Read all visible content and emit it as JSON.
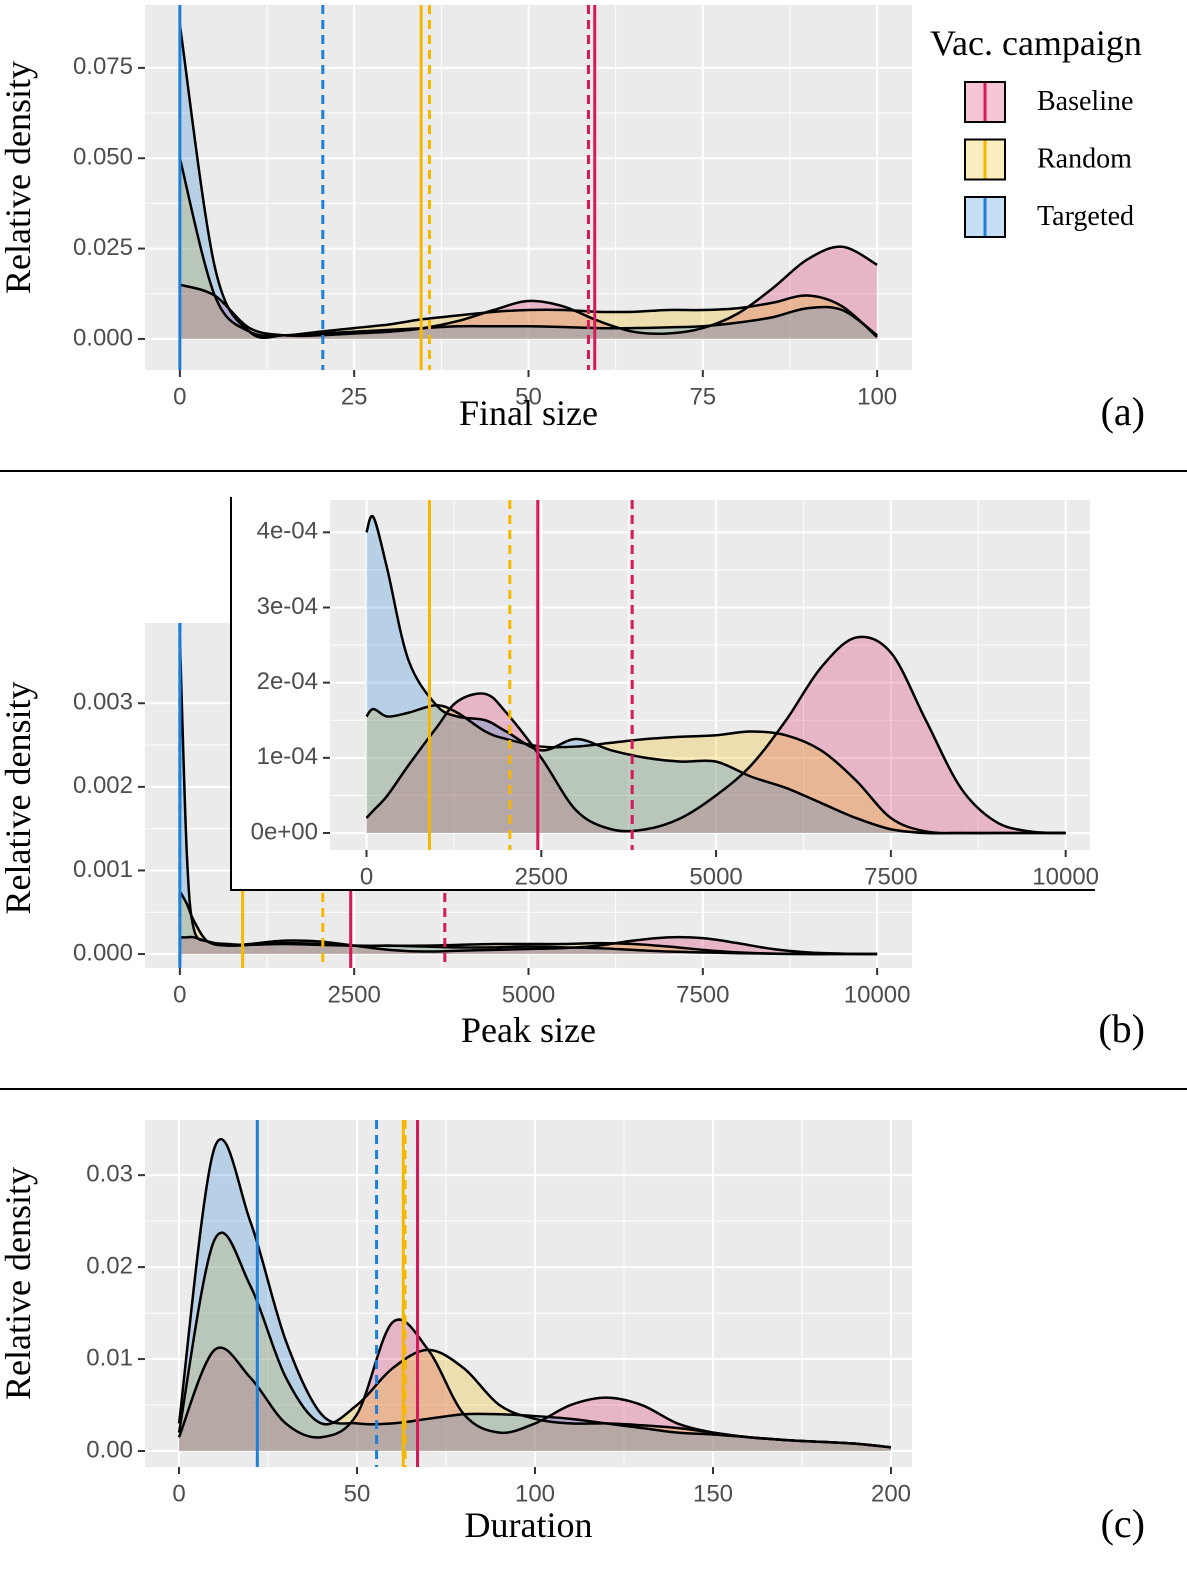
{
  "chart_data": [
    {
      "type": "density",
      "x_label": "Final size",
      "y_label": "Relative density",
      "panel_label": "(a)",
      "legend": "right",
      "legend_title": "Vac. campaign",
      "grid": true,
      "xlim": [
        -5,
        105
      ],
      "ylim": [
        -0.0086,
        0.0924
      ],
      "xticks": [
        0,
        25,
        50,
        75,
        100
      ],
      "yticks": [
        {
          "value": 0,
          "label": "0.000"
        },
        {
          "value": 0.025,
          "label": "0.025"
        },
        {
          "value": 0.05,
          "label": "0.050"
        },
        {
          "value": 0.075,
          "label": "0.075"
        }
      ],
      "x": [
        0,
        5,
        10,
        15,
        20,
        25,
        30,
        35,
        40,
        45,
        50,
        55,
        60,
        65,
        70,
        75,
        80,
        85,
        90,
        95,
        100
      ],
      "series": [
        {
          "name": "Baseline",
          "color": "#d6195a",
          "solid_line": 59.5,
          "dashed_line": 58.6,
          "values": [
            0.015,
            0.012,
            0.003,
            0.001,
            0.001,
            0.0015,
            0.002,
            0.003,
            0.005,
            0.008,
            0.0105,
            0.009,
            0.005,
            0.002,
            0.0015,
            0.003,
            0.007,
            0.014,
            0.022,
            0.0255,
            0.0205
          ]
        },
        {
          "name": "Random",
          "color": "#f5b800",
          "solid_line": 34.6,
          "dashed_line": 35.8,
          "values": [
            0.05,
            0.012,
            0.002,
            0.001,
            0.002,
            0.003,
            0.004,
            0.0055,
            0.0065,
            0.0075,
            0.008,
            0.008,
            0.0075,
            0.0075,
            0.008,
            0.008,
            0.0085,
            0.01,
            0.012,
            0.009,
            0.0005
          ]
        },
        {
          "name": "Targeted",
          "color": "#1e7fd8",
          "solid_line": 0,
          "dashed_line": 20.5,
          "values": [
            0.087,
            0.02,
            0.002,
            0.001,
            0.0015,
            0.002,
            0.0025,
            0.003,
            0.0035,
            0.0035,
            0.0035,
            0.0033,
            0.003,
            0.003,
            0.0032,
            0.0035,
            0.0045,
            0.006,
            0.0085,
            0.008,
            0.001
          ]
        }
      ]
    },
    {
      "type": "density",
      "x_label": "Peak size",
      "y_label": "Relative density",
      "panel_label": "(b)",
      "grid": true,
      "xlim": [
        -500,
        10500
      ],
      "ylim": [
        -0.000167,
        0.00396
      ],
      "xticks": [
        0,
        2500,
        5000,
        7500,
        10000
      ],
      "yticks": [
        {
          "value": 0,
          "label": "0.000"
        },
        {
          "value": 0.001,
          "label": "0.001"
        },
        {
          "value": 0.002,
          "label": "0.002"
        },
        {
          "value": 0.003,
          "label": "0.003"
        }
      ],
      "x": [
        0,
        100,
        200,
        400,
        700,
        1000,
        1500,
        2000,
        2500,
        3000,
        3500,
        4000,
        4500,
        5000,
        5500,
        6000,
        6500,
        7000,
        7500,
        8000,
        8500,
        9000,
        9500,
        10000
      ],
      "series": [
        {
          "name": "Baseline",
          "color": "#d6195a",
          "solid_line": 2450,
          "dashed_line": 3800,
          "values": [
            0.0002,
            0.0002,
            0.0002,
            0.00015,
            0.0001,
            0.00012,
            0.00016,
            0.00015,
            0.0001,
            5e-05,
            3e-05,
            4e-05,
            5e-05,
            6e-05,
            7e-05,
            0.0001,
            0.00016,
            0.0002,
            0.00019,
            0.00013,
            6e-05,
            2e-05,
            5e-06,
            0
          ]
        },
        {
          "name": "Random",
          "color": "#f5b800",
          "solid_line": 900,
          "dashed_line": 2050,
          "values": [
            0.00075,
            0.0006,
            0.0004,
            0.00015,
            0.0001,
            0.00011,
            0.00012,
            0.00011,
            0.0001,
            0.0001,
            0.0001,
            0.00011,
            0.00012,
            0.00012,
            0.00012,
            0.00013,
            0.00012,
            9e-05,
            5e-05,
            2e-05,
            5e-06,
            0,
            0,
            0
          ]
        },
        {
          "name": "Targeted",
          "color": "#1e7fd8",
          "solid_line": 0,
          "dashed_line": 0,
          "values": [
            0.0038,
            0.0012,
            0.0003,
            0.00015,
            0.00012,
            0.00011,
            0.00013,
            0.00012,
            0.0001,
            0.0001,
            9e-05,
            8e-05,
            8e-05,
            9e-05,
            8e-05,
            7e-05,
            5e-05,
            3e-05,
            2e-05,
            1e-05,
            5e-06,
            0,
            0,
            0
          ]
        }
      ]
    },
    {
      "type": "density",
      "grid": true,
      "xlim": [
        -522,
        10348
      ],
      "ylim": [
        -2.26e-05,
        0.000443
      ],
      "xticks": [
        0,
        2500,
        5000,
        7500,
        10000
      ],
      "yticks": [
        {
          "value": 0,
          "label": "0e+00"
        },
        {
          "value": 0.0001,
          "label": "1e-04"
        },
        {
          "value": 0.0002,
          "label": "2e-04"
        },
        {
          "value": 0.0003,
          "label": "3e-04"
        },
        {
          "value": 0.0004,
          "label": "4e-04"
        }
      ],
      "x": [
        0,
        100,
        300,
        600,
        1000,
        1300,
        1700,
        2000,
        2500,
        3000,
        3500,
        4000,
        4500,
        5000,
        5500,
        6000,
        6500,
        7000,
        7500,
        8000,
        8500,
        9000,
        9500,
        10000
      ],
      "series": [
        {
          "name": "Baseline",
          "color": "#d6195a",
          "solid_line": 2450,
          "dashed_line": 3800,
          "values": [
            2e-05,
            3e-05,
            5e-05,
            9e-05,
            0.00014,
            0.000175,
            0.000185,
            0.00016,
            0.0001,
            3e-05,
            5e-06,
            5e-06,
            2e-05,
            5e-05,
            9e-05,
            0.00015,
            0.00022,
            0.00026,
            0.00024,
            0.00015,
            6e-05,
            1.5e-05,
            2e-06,
            0
          ]
        },
        {
          "name": "Random",
          "color": "#f5b800",
          "solid_line": 900,
          "dashed_line": 2050,
          "values": [
            0.000155,
            0.000165,
            0.000155,
            0.00016,
            0.00017,
            0.00016,
            0.000135,
            0.000125,
            0.000115,
            0.000115,
            0.00012,
            0.000125,
            0.000128,
            0.00013,
            0.000135,
            0.00013,
            0.00011,
            7e-05,
            2e-05,
            2e-06,
            0,
            0,
            0,
            0
          ]
        },
        {
          "name": "Targeted",
          "color": "#1e7fd8",
          "values": [
            0.0004,
            0.00042,
            0.00035,
            0.00023,
            0.00017,
            0.000155,
            0.00015,
            0.000135,
            0.00011,
            0.000125,
            0.00011,
            0.0001,
            9.5e-05,
            9.5e-05,
            7.5e-05,
            6e-05,
            4e-05,
            2e-05,
            5e-06,
            0,
            0,
            0,
            0,
            0
          ]
        }
      ]
    },
    {
      "type": "density",
      "x_label": "Duration",
      "y_label": "Relative density",
      "panel_label": "(c)",
      "grid": true,
      "xlim": [
        -9.55,
        205.9
      ],
      "ylim": [
        -0.00174,
        0.036
      ],
      "xticks": [
        0,
        50,
        100,
        150,
        200
      ],
      "yticks": [
        {
          "value": 0,
          "label": "0.00"
        },
        {
          "value": 0.01,
          "label": "0.01"
        },
        {
          "value": 0.02,
          "label": "0.02"
        },
        {
          "value": 0.03,
          "label": "0.03"
        }
      ],
      "x": [
        0,
        10,
        20,
        30,
        40,
        50,
        60,
        70,
        80,
        90,
        100,
        110,
        120,
        130,
        140,
        150,
        160,
        170,
        180,
        190,
        200
      ],
      "series": [
        {
          "name": "Baseline",
          "color": "#d6195a",
          "solid_line": 67,
          "dashed_line": 67,
          "values": [
            0.0015,
            0.011,
            0.008,
            0.003,
            0.0015,
            0.004,
            0.014,
            0.011,
            0.004,
            0.002,
            0.003,
            0.005,
            0.0058,
            0.005,
            0.003,
            0.002,
            0.0015,
            0.0012,
            0.001,
            0.0008,
            0.0004
          ]
        },
        {
          "name": "Random",
          "color": "#f5b800",
          "solid_line": 63,
          "dashed_line": 63.5,
          "values": [
            0.002,
            0.023,
            0.018,
            0.008,
            0.003,
            0.005,
            0.009,
            0.011,
            0.009,
            0.005,
            0.0035,
            0.003,
            0.003,
            0.0028,
            0.0025,
            0.002,
            0.0015,
            0.0012,
            0.001,
            0.0008,
            0.0004
          ]
        },
        {
          "name": "Targeted",
          "color": "#1e7fd8",
          "solid_line": 22,
          "dashed_line": 55.5,
          "values": [
            0.003,
            0.033,
            0.025,
            0.012,
            0.004,
            0.003,
            0.003,
            0.0035,
            0.004,
            0.004,
            0.0038,
            0.0035,
            0.003,
            0.0025,
            0.002,
            0.0018,
            0.0015,
            0.0012,
            0.001,
            0.0008,
            0.0004
          ]
        }
      ]
    }
  ]
}
